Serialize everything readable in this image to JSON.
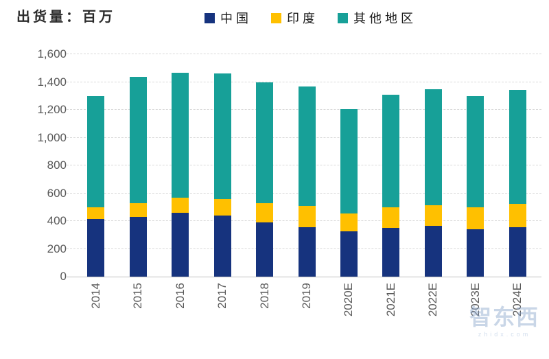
{
  "header": {
    "title": "出货量：百万"
  },
  "legend": [
    {
      "key": "china",
      "label": "中国",
      "color": "#16337E"
    },
    {
      "key": "india",
      "label": "印度",
      "color": "#FFC000"
    },
    {
      "key": "other-regions",
      "label": "其他地区",
      "color": "#17A098"
    }
  ],
  "watermark": {
    "logo": "智东西",
    "domain": "zhidx.com"
  },
  "chart_data": {
    "type": "bar",
    "stacked": true,
    "title": "出货量：百万",
    "xlabel": "",
    "ylabel": "出货量（百万）",
    "categories": [
      "2014",
      "2015",
      "2016",
      "2017",
      "2018",
      "2019",
      "2020E",
      "2021E",
      "2022E",
      "2023E",
      "2024E"
    ],
    "series": [
      {
        "name": "中国",
        "color": "#16337E",
        "values": [
          415,
          430,
          460,
          440,
          390,
          355,
          325,
          350,
          365,
          340,
          355
        ]
      },
      {
        "name": "印度",
        "color": "#FFC000",
        "values": [
          85,
          100,
          110,
          120,
          140,
          155,
          130,
          150,
          150,
          160,
          170
        ]
      },
      {
        "name": "其他地区",
        "color": "#17A098",
        "values": [
          800,
          905,
          895,
          900,
          870,
          860,
          750,
          810,
          835,
          800,
          820
        ]
      }
    ],
    "totals": [
      1300,
      1435,
      1465,
      1460,
      1400,
      1370,
      1205,
      1310,
      1350,
      1300,
      1345
    ],
    "ylim": [
      0,
      1600
    ],
    "ytick_interval": 200,
    "ytick_labels": [
      "0",
      "200",
      "400",
      "600",
      "800",
      "1,000",
      "1,200",
      "1,400",
      "1,600"
    ],
    "grid": "horizontal-dashed",
    "legend_position": "top",
    "x_tick_rotation": -90
  }
}
